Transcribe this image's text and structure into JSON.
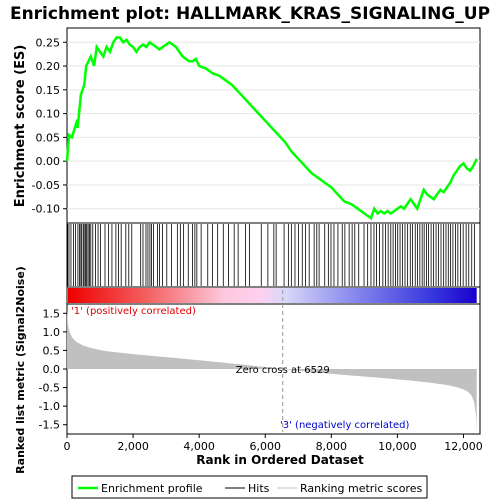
{
  "chart_data": {
    "type": "line",
    "title": "Enrichment plot: HALLMARK_KRAS_SIGNALING_UP",
    "xlabel": "Rank in Ordered Dataset",
    "xlim": [
      0,
      12500
    ],
    "x_ticks": [
      "0",
      "2,000",
      "4,000",
      "6,000",
      "8,000",
      "10,000",
      "12,000"
    ],
    "es_panel": {
      "ylabel": "Enrichment score (ES)",
      "ylim": [
        -0.13,
        0.28
      ],
      "y_ticks": [
        "0.25",
        "0.20",
        "0.15",
        "0.10",
        "0.05",
        "0.00",
        "-0.05",
        "-0.10"
      ],
      "series": [
        {
          "name": "Enrichment profile",
          "color": "#00ff00",
          "x": [
            0,
            60,
            150,
            280,
            320,
            420,
            520,
            580,
            650,
            720,
            820,
            900,
            1000,
            1100,
            1200,
            1300,
            1400,
            1500,
            1600,
            1700,
            1800,
            1900,
            2000,
            2100,
            2200,
            2300,
            2400,
            2500,
            2600,
            2700,
            2800,
            2900,
            3000,
            3100,
            3200,
            3300,
            3400,
            3500,
            3600,
            3700,
            3800,
            3900,
            4000,
            4200,
            4400,
            4600,
            4800,
            5000,
            5200,
            5400,
            5600,
            5800,
            6000,
            6200,
            6400,
            6600,
            6800,
            7000,
            7200,
            7400,
            7600,
            7800,
            8000,
            8200,
            8400,
            8600,
            8800,
            9000,
            9200,
            9300,
            9400,
            9500,
            9600,
            9700,
            9800,
            9900,
            10000,
            10100,
            10200,
            10300,
            10400,
            10500,
            10600,
            10700,
            10800,
            10900,
            11000,
            11100,
            11200,
            11300,
            11400,
            11500,
            11600,
            11700,
            11800,
            11900,
            12000,
            12100,
            12200,
            12300,
            12400
          ],
          "y": [
            0.0,
            0.055,
            0.05,
            0.08,
            0.07,
            0.14,
            0.16,
            0.2,
            0.21,
            0.22,
            0.2,
            0.24,
            0.23,
            0.22,
            0.24,
            0.23,
            0.25,
            0.26,
            0.26,
            0.25,
            0.255,
            0.245,
            0.24,
            0.23,
            0.24,
            0.245,
            0.24,
            0.25,
            0.245,
            0.24,
            0.235,
            0.24,
            0.245,
            0.25,
            0.245,
            0.24,
            0.23,
            0.22,
            0.215,
            0.21,
            0.21,
            0.215,
            0.2,
            0.195,
            0.185,
            0.18,
            0.17,
            0.16,
            0.145,
            0.13,
            0.115,
            0.1,
            0.085,
            0.07,
            0.055,
            0.04,
            0.02,
            0.005,
            -0.01,
            -0.025,
            -0.035,
            -0.045,
            -0.055,
            -0.07,
            -0.085,
            -0.09,
            -0.1,
            -0.11,
            -0.12,
            -0.1,
            -0.11,
            -0.105,
            -0.11,
            -0.105,
            -0.11,
            -0.105,
            -0.1,
            -0.095,
            -0.1,
            -0.09,
            -0.08,
            -0.09,
            -0.1,
            -0.08,
            -0.06,
            -0.07,
            -0.075,
            -0.08,
            -0.07,
            -0.06,
            -0.065,
            -0.055,
            -0.045,
            -0.03,
            -0.02,
            -0.01,
            -0.005,
            -0.015,
            -0.02,
            -0.01,
            0.005
          ]
        }
      ]
    },
    "hits": [
      20,
      60,
      120,
      200,
      260,
      330,
      380,
      420,
      450,
      500,
      540,
      570,
      600,
      640,
      680,
      720,
      780,
      860,
      940,
      1010,
      1150,
      1260,
      1360,
      1480,
      1560,
      1640,
      1780,
      1870,
      1960,
      2230,
      2300,
      2390,
      2450,
      2510,
      2560,
      2620,
      2740,
      2800,
      2890,
      3020,
      3160,
      3340,
      3430,
      3530,
      3670,
      3800,
      3870,
      3930,
      4060,
      4260,
      4400,
      4560,
      4730,
      4890,
      5060,
      5180,
      5400,
      5520,
      5880,
      6080,
      6260,
      6330,
      6570,
      6700,
      6790,
      6900,
      7010,
      7120,
      7220,
      7330,
      7480,
      7560,
      7630,
      7800,
      7910,
      7990,
      8080,
      8200,
      8330,
      8410,
      8540,
      8630,
      8710,
      8830,
      8990,
      9100,
      9200,
      9290,
      9370,
      9460,
      9560,
      9640,
      9720,
      9800,
      9870,
      9940,
      10010,
      10080,
      10150,
      10230,
      10310,
      10390,
      10460,
      10540,
      10610,
      10680,
      10750,
      10810,
      10880,
      10940,
      11020,
      11090,
      11170,
      11240,
      11320,
      11400,
      11470,
      11540,
      11610,
      11680,
      11760,
      11830,
      11910,
      11990,
      12080,
      12160,
      12250,
      12330
    ],
    "rank_panel": {
      "ylabel": "Ranked list metric (Signal2Noise)",
      "ylim": [
        -1.75,
        1.75
      ],
      "y_ticks": [
        "1.5",
        "1.0",
        "0.5",
        "0.0",
        "-0.5",
        "-1.0",
        "-1.5"
      ],
      "x": [
        0,
        30,
        80,
        150,
        300,
        500,
        800,
        1200,
        1800,
        2500,
        3500,
        4500,
        5500,
        6529,
        7500,
        8500,
        9500,
        10500,
        11000,
        11500,
        11800,
        12000,
        12150,
        12250,
        12320,
        12380,
        12400
      ],
      "y": [
        1.6,
        1.2,
        1.0,
        0.85,
        0.72,
        0.63,
        0.55,
        0.48,
        0.42,
        0.36,
        0.28,
        0.19,
        0.1,
        0.0,
        -0.09,
        -0.17,
        -0.24,
        -0.32,
        -0.37,
        -0.43,
        -0.49,
        -0.55,
        -0.62,
        -0.72,
        -0.9,
        -1.25,
        -1.7
      ],
      "fill_color": "#c0c0c0"
    },
    "annotations": {
      "positive": "'1' (positively correlated)",
      "negative": "'3' (negatively correlated)",
      "zero_cross": "Zero cross at 6529",
      "zero_cross_x": 6529
    },
    "legend": {
      "placement": "bottom",
      "entries": [
        {
          "label": "Enrichment profile",
          "color": "#00ff00"
        },
        {
          "label": "Hits",
          "color": "#000000"
        },
        {
          "label": "Ranking metric scores",
          "color": "#c0c0c0"
        }
      ]
    },
    "colors": {
      "positive_text": "#dd0000",
      "negative_text": "#0000cc"
    }
  }
}
